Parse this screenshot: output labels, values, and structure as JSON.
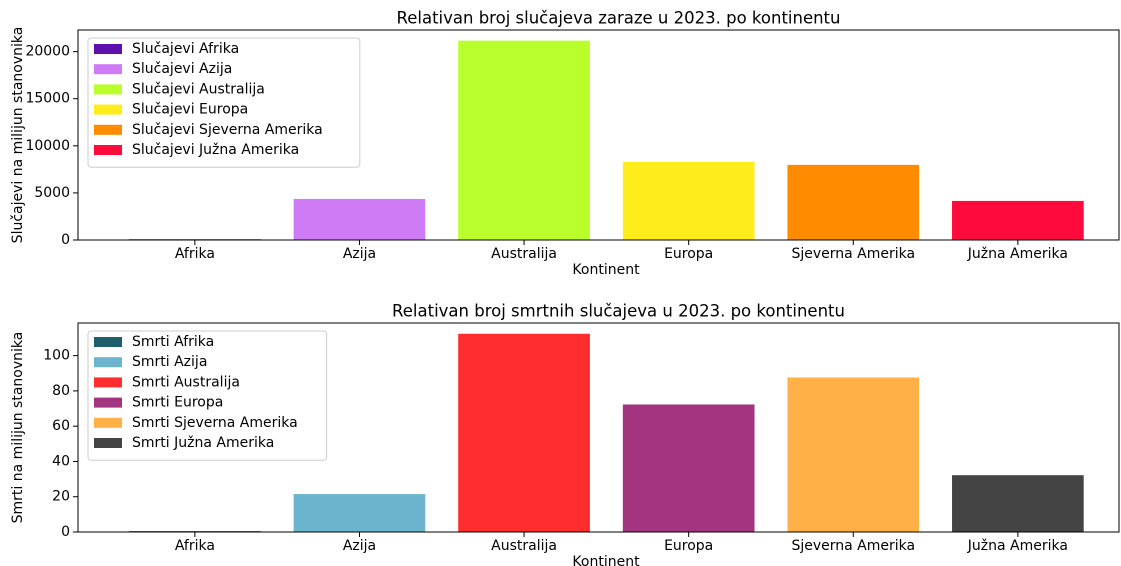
{
  "chart_data": [
    {
      "type": "bar",
      "title": "Relativan broj slučajeva zaraze u 2023. po kontinentu",
      "xlabel": "Kontinent",
      "ylabel": "Slučajevi na milijun stanovnika",
      "categories": [
        "Afrika",
        "Azija",
        "Australija",
        "Europa",
        "Sjeverna Amerika",
        "Južna Amerika"
      ],
      "values": [
        80,
        4360,
        21170,
        8300,
        7980,
        4150
      ],
      "bar_names": [
        "Slučajevi Afrika",
        "Slučajevi Azija",
        "Slučajevi Australija",
        "Slučajevi Europa",
        "Slučajevi Sjeverna Amerika",
        "Slučajevi Južna Amerika"
      ],
      "colors": [
        "#5e10ad",
        "#cf7bf5",
        "#b9ff2b",
        "#ffec1a",
        "#ff8c00",
        "#ff0a3c"
      ],
      "ylim": [
        0,
        22300
      ],
      "yticks": [
        0,
        5000,
        10000,
        15000,
        20000
      ],
      "legend": "upper left"
    },
    {
      "type": "bar",
      "title": "Relativan broj smrtnih slučajeva u 2023. po kontinentu",
      "xlabel": "Kontinent",
      "ylabel": "Smrti na milijun stanovnika",
      "categories": [
        "Afrika",
        "Azija",
        "Australija",
        "Europa",
        "Sjeverna Amerika",
        "Južna Amerika"
      ],
      "values": [
        0.5,
        21.5,
        112.4,
        72.3,
        87.6,
        32.2
      ],
      "bar_names": [
        "Smrti Afrika",
        "Smrti Azija",
        "Smrti Australija",
        "Smrti Europa",
        "Smrti Sjeverna Amerika",
        "Smrti Južna Amerika"
      ],
      "colors": [
        "#1e5f6c",
        "#6ab4cd",
        "#ff2d2d",
        "#a33580",
        "#ffb147",
        "#444444"
      ],
      "ylim": [
        0,
        118.5
      ],
      "yticks": [
        0,
        20,
        40,
        60,
        80,
        100
      ],
      "legend": "upper left"
    }
  ]
}
